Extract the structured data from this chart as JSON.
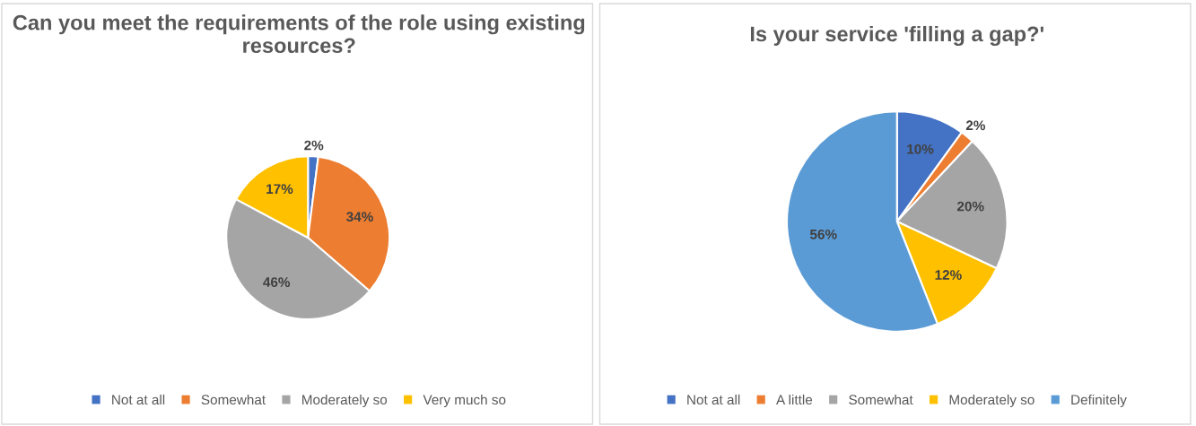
{
  "chart_data": [
    {
      "type": "pie",
      "title": "Can you meet the requirements of the role using existing resources?",
      "categories": [
        "Not at all",
        "Somewhat",
        "Moderately so",
        "Very much so"
      ],
      "values": [
        2,
        34,
        46,
        17
      ],
      "colors": [
        "#4472c4",
        "#ed7d31",
        "#a5a5a5",
        "#ffc000"
      ],
      "value_labels": [
        "2%",
        "34%",
        "46%",
        "17%"
      ],
      "legend": "bottom"
    },
    {
      "type": "pie",
      "title": "Is your service 'filling a gap?'",
      "categories": [
        "Not at all",
        "A little",
        "Somewhat",
        "Moderately so",
        "Definitely"
      ],
      "values": [
        10,
        2,
        20,
        12,
        56
      ],
      "colors": [
        "#4472c4",
        "#ed7d31",
        "#a5a5a5",
        "#ffc000",
        "#5b9bd5"
      ],
      "value_labels": [
        "10%",
        "2%",
        "20%",
        "12%",
        "56%"
      ],
      "legend": "bottom"
    }
  ]
}
